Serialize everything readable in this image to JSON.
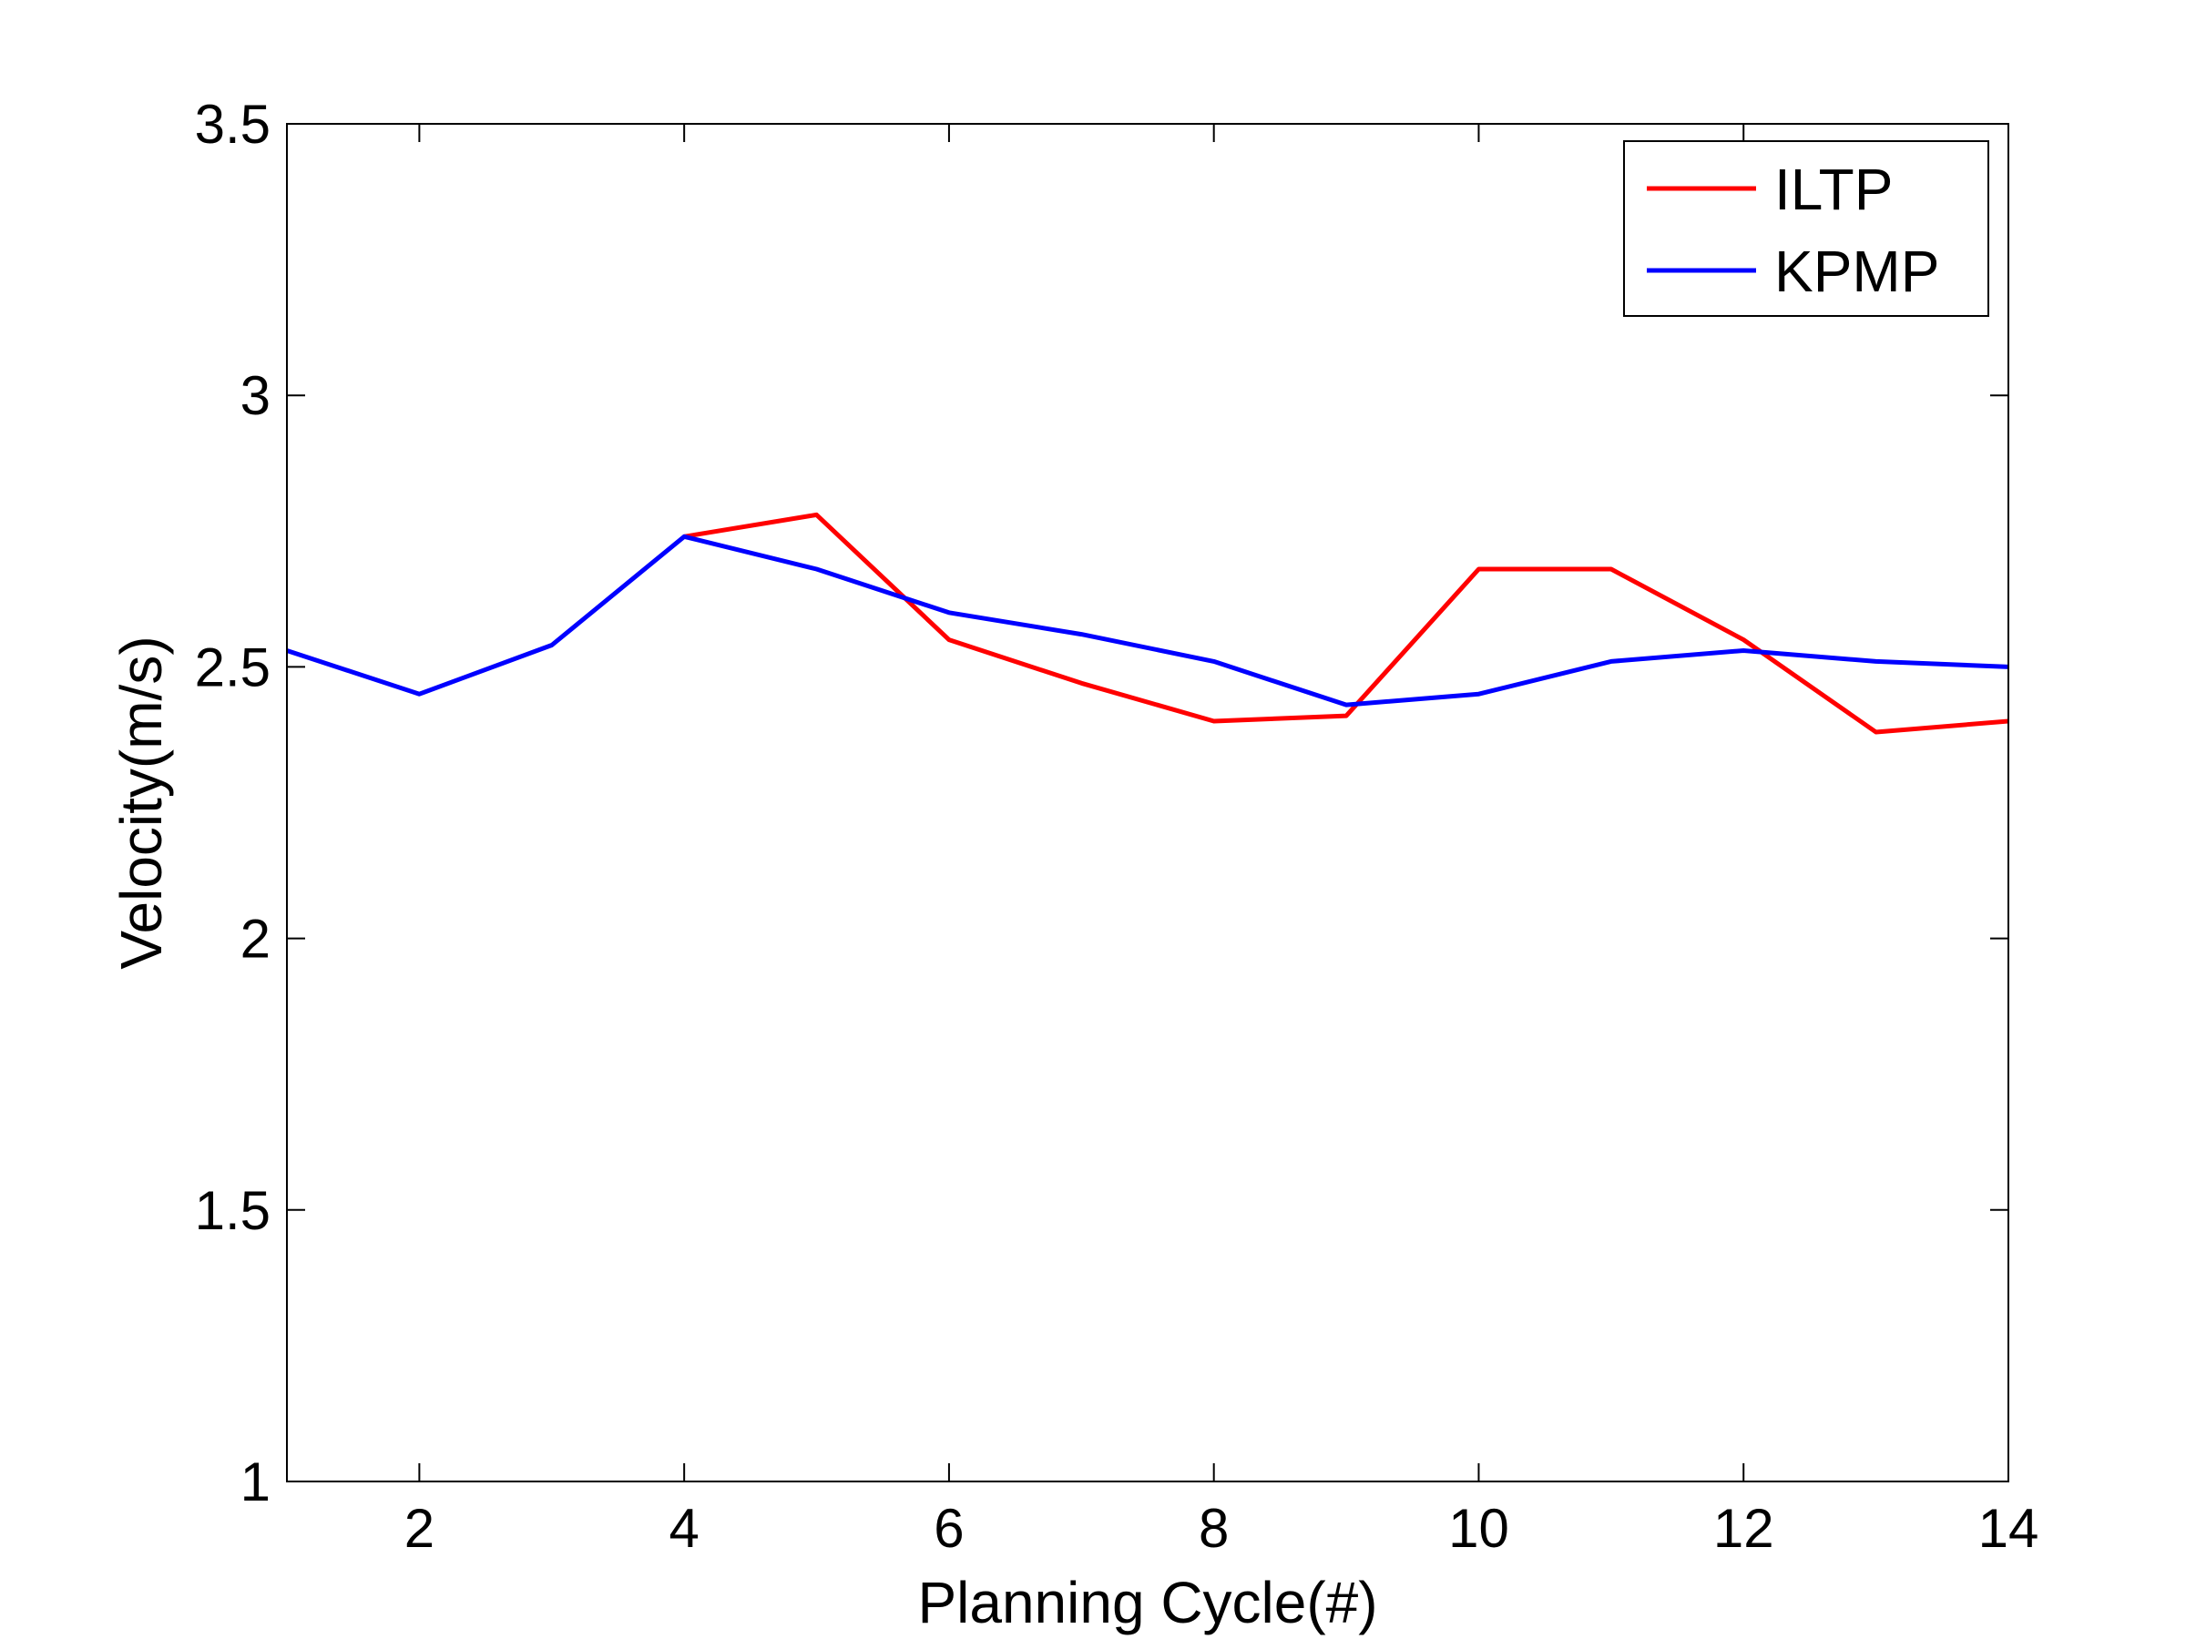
{
  "chart_data": {
    "type": "line",
    "title": "",
    "xlabel": "Planning Cycle(#)",
    "ylabel": "Velocity(m/s)",
    "xlim": [
      1,
      14
    ],
    "ylim": [
      1,
      3.5
    ],
    "xticks": [
      2,
      4,
      6,
      8,
      10,
      12,
      14
    ],
    "yticks": [
      1,
      1.5,
      2,
      2.5,
      3,
      3.5
    ],
    "xtick_labels": [
      "2",
      "4",
      "6",
      "8",
      "10",
      "12",
      "14"
    ],
    "ytick_labels": [
      "1",
      "1.5",
      "2",
      "2.5",
      "3",
      "3.5"
    ],
    "grid": false,
    "legend_position": "top-right",
    "series": [
      {
        "name": "ILTP",
        "color": "#ff0000",
        "x": [
          4,
          5,
          6,
          7,
          8,
          9,
          10,
          11,
          12,
          13,
          14
        ],
        "y": [
          2.74,
          2.78,
          2.55,
          2.47,
          2.4,
          2.41,
          2.68,
          2.68,
          2.55,
          2.38,
          2.4
        ]
      },
      {
        "name": "KPMP",
        "color": "#0000ff",
        "x": [
          1,
          2,
          3,
          4,
          5,
          6,
          7,
          8,
          9,
          10,
          11,
          12,
          13,
          14
        ],
        "y": [
          2.53,
          2.45,
          2.54,
          2.74,
          2.68,
          2.6,
          2.56,
          2.51,
          2.43,
          2.45,
          2.51,
          2.53,
          2.51,
          2.5
        ]
      }
    ]
  }
}
